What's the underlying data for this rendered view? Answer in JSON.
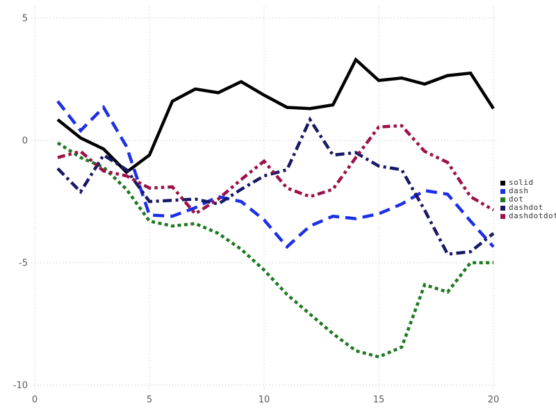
{
  "chart_data": {
    "type": "line",
    "title": "",
    "xlabel": "",
    "ylabel": "",
    "grid": "dotted",
    "grid_color": "#c9c9da",
    "background": "#ffffff",
    "tick_label_color": "#595959",
    "legend_position": "right-outside",
    "xlim": [
      0,
      20.6
    ],
    "ylim": [
      -10.5,
      5.6
    ],
    "x_ticks": [
      0,
      5,
      10,
      15,
      20
    ],
    "y_ticks": [
      5,
      0,
      -5,
      -10
    ],
    "x_tick_labels": [
      "0",
      "5",
      "10",
      "15",
      "20"
    ],
    "y_tick_labels": [
      "5",
      "0",
      "-5",
      "-10"
    ],
    "x": [
      1,
      2,
      3,
      4,
      5,
      6,
      7,
      8,
      9,
      10,
      11,
      12,
      13,
      14,
      15,
      16,
      17,
      18,
      19,
      20
    ],
    "series": [
      {
        "name": "solid",
        "color": "#000000",
        "dash_style": "solid",
        "values": [
          0.85,
          0.1,
          -0.35,
          -1.3,
          -0.6,
          1.6,
          2.1,
          1.95,
          2.4,
          1.85,
          1.35,
          1.3,
          1.45,
          3.3,
          2.45,
          2.55,
          2.3,
          2.65,
          2.75,
          1.3
        ]
      },
      {
        "name": "dash",
        "color": "#1b2fe8",
        "dash_style": "dash",
        "values": [
          1.6,
          0.4,
          1.35,
          -0.25,
          -3.05,
          -3.1,
          -2.75,
          -2.3,
          -2.5,
          -3.25,
          -4.35,
          -3.5,
          -3.1,
          -3.2,
          -3.0,
          -2.6,
          -2.05,
          -2.2,
          -3.3,
          -4.35
        ]
      },
      {
        "name": "dot",
        "color": "#1e7a22",
        "dash_style": "dot",
        "values": [
          -0.1,
          -0.7,
          -1.1,
          -2.0,
          -3.3,
          -3.5,
          -3.4,
          -3.8,
          -4.45,
          -5.3,
          -6.3,
          -7.1,
          -7.9,
          -8.6,
          -8.85,
          -8.45,
          -5.9,
          -6.2,
          -5.0,
          -5.0
        ]
      },
      {
        "name": "dashdot",
        "color": "#181865",
        "dash_style": "dashdot",
        "values": [
          -1.15,
          -2.1,
          -0.6,
          -1.2,
          -2.5,
          -2.45,
          -2.4,
          -2.6,
          -2.0,
          -1.45,
          -1.2,
          0.85,
          -0.6,
          -0.5,
          -1.05,
          -1.2,
          -2.85,
          -4.65,
          -4.55,
          -3.8
        ]
      },
      {
        "name": "dashdotdot",
        "color": "#9b1148",
        "dash_style": "dashdotdot",
        "values": [
          -0.7,
          -0.45,
          -1.25,
          -1.45,
          -1.95,
          -1.9,
          -3.0,
          -2.4,
          -1.6,
          -0.85,
          -1.95,
          -2.3,
          -2.0,
          -0.7,
          0.55,
          0.6,
          -0.45,
          -0.9,
          -2.3,
          -2.85
        ]
      }
    ],
    "legend_items": [
      "solid",
      "dash",
      "dot",
      "dashdot",
      "dashdotdot"
    ]
  }
}
